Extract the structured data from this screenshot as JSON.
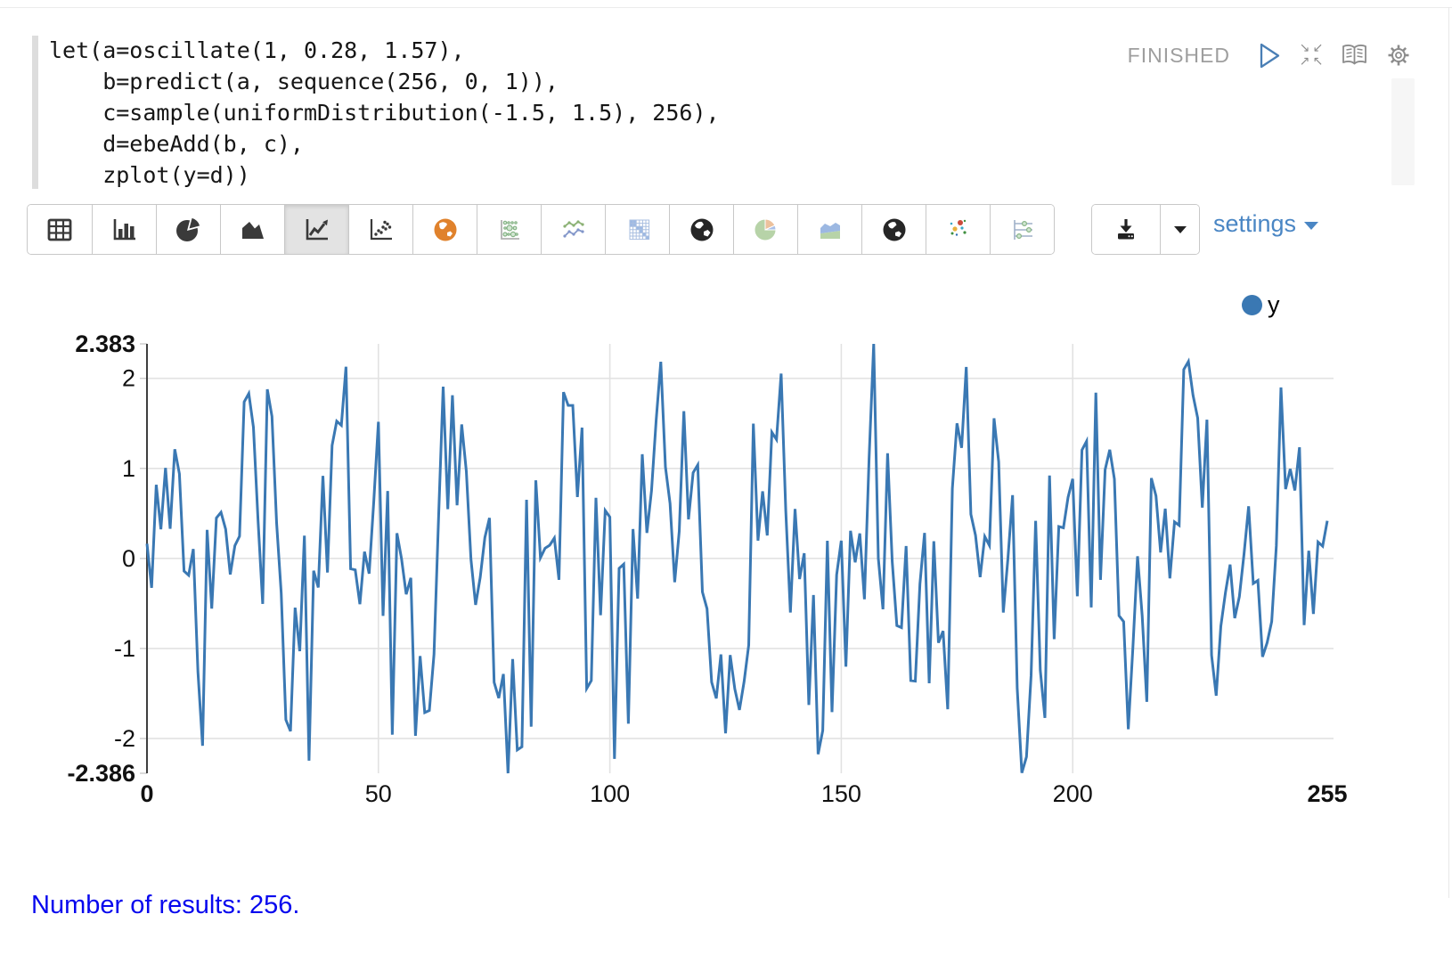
{
  "paragraph": {
    "code": "let(a=oscillate(1, 0.28, 1.57),\n    b=predict(a, sequence(256, 0, 1)),\n    c=sample(uniformDistribution(-1.5, 1.5), 256),\n    d=ebeAdd(b, c),\n    zplot(y=d))",
    "status": "FINISHED"
  },
  "toolbar": {
    "settings_label": "settings",
    "chart_types": [
      {
        "name": "table",
        "selected": false
      },
      {
        "name": "bar-chart",
        "selected": false
      },
      {
        "name": "pie-chart",
        "selected": false
      },
      {
        "name": "area-chart",
        "selected": false
      },
      {
        "name": "line-chart",
        "selected": true
      },
      {
        "name": "scatter-chart",
        "selected": false
      },
      {
        "name": "map-chart",
        "selected": false
      },
      {
        "name": "bubble-chart",
        "selected": false
      },
      {
        "name": "multi-line-chart",
        "selected": false
      },
      {
        "name": "heatmap-chart",
        "selected": false
      },
      {
        "name": "globe-chart",
        "selected": false
      },
      {
        "name": "colored-pie-chart",
        "selected": false
      },
      {
        "name": "stacked-area-chart",
        "selected": false
      },
      {
        "name": "globe-chart-2",
        "selected": false
      },
      {
        "name": "colored-scatter-chart",
        "selected": false
      },
      {
        "name": "parallel-coordinates-chart",
        "selected": false
      }
    ]
  },
  "chart_data": {
    "type": "line",
    "title": "",
    "legend": {
      "label": "y",
      "color": "#3a78b3",
      "position": "top-right"
    },
    "grid": true,
    "x": {
      "label": "",
      "min": 0,
      "max": 255,
      "ticks": [
        {
          "label": "0",
          "value": 0,
          "bold": true,
          "grid": false
        },
        {
          "label": "50",
          "value": 50,
          "bold": false,
          "grid": true
        },
        {
          "label": "100",
          "value": 100,
          "bold": false,
          "grid": true
        },
        {
          "label": "150",
          "value": 150,
          "bold": false,
          "grid": true
        },
        {
          "label": "200",
          "value": 200,
          "bold": false,
          "grid": true
        },
        {
          "label": "255",
          "value": 255,
          "bold": true,
          "grid": false
        }
      ]
    },
    "y": {
      "label": "",
      "min": -2.386,
      "max": 2.383,
      "ticks": [
        {
          "label": "2.383",
          "value": 2.383,
          "bold": true,
          "grid": false
        },
        {
          "label": "2",
          "value": 2,
          "bold": false,
          "grid": true
        },
        {
          "label": "1",
          "value": 1,
          "bold": false,
          "grid": true
        },
        {
          "label": "0",
          "value": 0,
          "bold": false,
          "grid": true
        },
        {
          "label": "-1",
          "value": -1,
          "bold": false,
          "grid": true
        },
        {
          "label": "-2",
          "value": -2,
          "bold": false,
          "grid": true
        },
        {
          "label": "-2.386",
          "value": -2.386,
          "bold": true,
          "grid": false
        }
      ]
    },
    "series": [
      {
        "name": "y",
        "color": "#3a78b3",
        "n_points": 256,
        "y_min": -2.386,
        "y_max": 2.383,
        "description": "y = sin(0.28*x + 1.57) + uniform noise in [-1.5, 1.5], 256 samples (x = 0..255); exact noisy values not individually legible, regenerated deterministically from seed",
        "signal": {
          "amplitude": 1,
          "omega": 0.28,
          "phase": 1.57
        },
        "noise": {
          "min": -1.5,
          "max": 1.5
        },
        "seed": 20
      }
    ]
  },
  "results": {
    "text": "Number of results: 256."
  },
  "colors": {
    "series_blue": "#3a78b3",
    "link_blue": "#4a86c4",
    "results_blue": "#0707ee",
    "status_gray": "#9e9e9e",
    "icon_gray": "#8c8c8c",
    "icon_dark": "#3a3a3a",
    "grid_gray": "#e2e2e2"
  }
}
